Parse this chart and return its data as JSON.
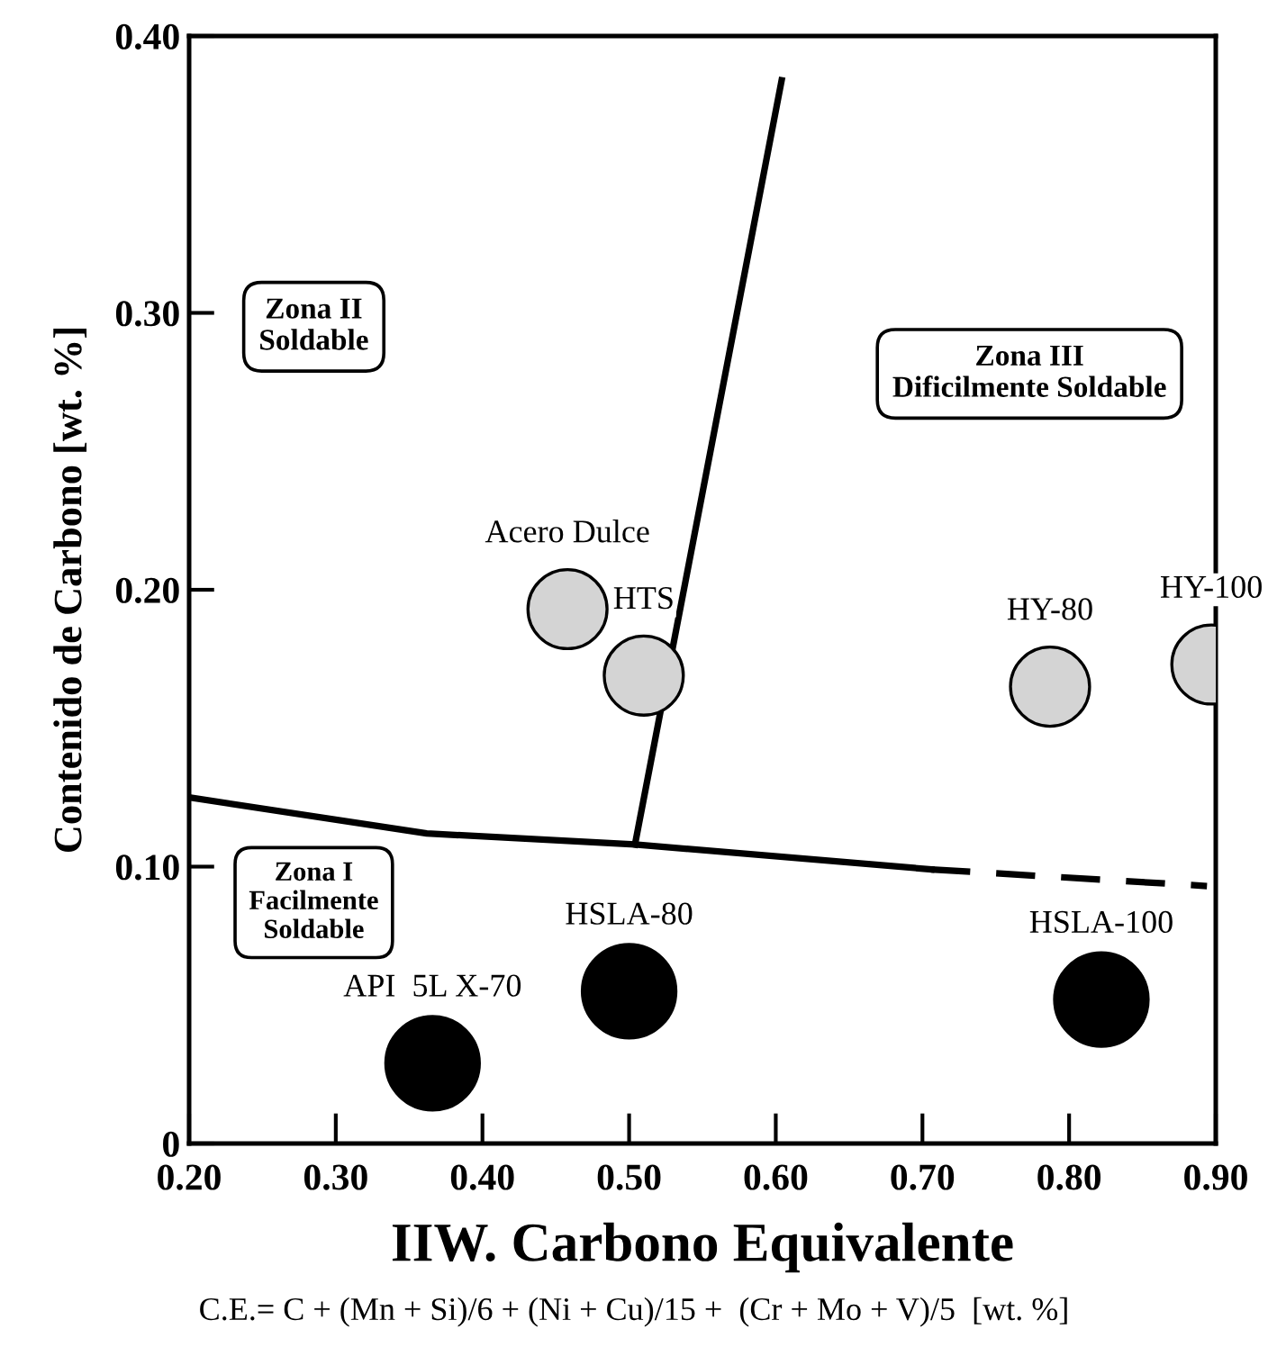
{
  "chart_data": {
    "type": "scatter",
    "xlabel": "IIW. Carbono Equivalente",
    "ylabel": "Contenido de Carbono [wt. %]",
    "xlim": [
      0.2,
      0.9
    ],
    "ylim": [
      0,
      0.4
    ],
    "xticks": [
      {
        "value": 0.2,
        "label": "0.20"
      },
      {
        "value": 0.3,
        "label": "0.30"
      },
      {
        "value": 0.4,
        "label": "0.40"
      },
      {
        "value": 0.5,
        "label": "0.50"
      },
      {
        "value": 0.6,
        "label": "0.60"
      },
      {
        "value": 0.7,
        "label": "0.70"
      },
      {
        "value": 0.8,
        "label": "0.80"
      },
      {
        "value": 0.9,
        "label": "0.90"
      }
    ],
    "yticks": [
      {
        "value": 0,
        "label": "0"
      },
      {
        "value": 0.1,
        "label": "0.10"
      },
      {
        "value": 0.2,
        "label": "0.20"
      },
      {
        "value": 0.3,
        "label": "0.30"
      },
      {
        "value": 0.4,
        "label": "0.40"
      }
    ],
    "grid": false,
    "legend": false,
    "series": [
      {
        "type": "line",
        "color": "#000000",
        "line_style": "solid",
        "marker": "none",
        "x": [
          0.2,
          0.362,
          0.504,
          0.706
        ],
        "values": [
          0.125,
          0.112,
          0.108,
          0.099
        ]
      },
      {
        "type": "line",
        "color": "#000000",
        "line_style": "dashed",
        "marker": "none",
        "x": [
          0.706,
          0.894
        ],
        "values": [
          0.099,
          0.093
        ]
      },
      {
        "type": "line",
        "color": "#000000",
        "line_style": "solid",
        "marker": "none",
        "x": [
          0.504,
          0.604
        ],
        "values": [
          0.108,
          0.384
        ]
      },
      {
        "color": "#000000",
        "marker": "circle",
        "x": [
          0.366,
          0.5,
          0.822
        ],
        "values": [
          0.029,
          0.055,
          0.052
        ]
      },
      {
        "color": "#d4d4d4",
        "marker": "circle",
        "x": [
          0.458,
          0.51,
          0.787,
          0.897
        ],
        "values": [
          0.193,
          0.169,
          0.165,
          0.173
        ]
      }
    ],
    "annotations": [
      {
        "text": "API  5L X-70",
        "x": 0.366,
        "y": 0.029
      },
      {
        "text": "HSLA-80",
        "x": 0.5,
        "y": 0.055
      },
      {
        "text": "HSLA-100",
        "x": 0.822,
        "y": 0.052
      },
      {
        "text": "Acero Dulce",
        "x": 0.458,
        "y": 0.193
      },
      {
        "text": "HTS",
        "x": 0.51,
        "y": 0.169
      },
      {
        "text": "HY-80",
        "x": 0.787,
        "y": 0.165
      },
      {
        "text": "HY-100",
        "x": 0.897,
        "y": 0.173
      },
      "Zona II\nSoldable",
      "Zona III\nDificilmente Soldable",
      "Zona I\nFacilmente\nSoldable",
      "C.E.= C + (Mn + Si)/6 + (Ni + Cu)/15 +  (Cr + Mo + V)/5  [wt. %]"
    ]
  }
}
